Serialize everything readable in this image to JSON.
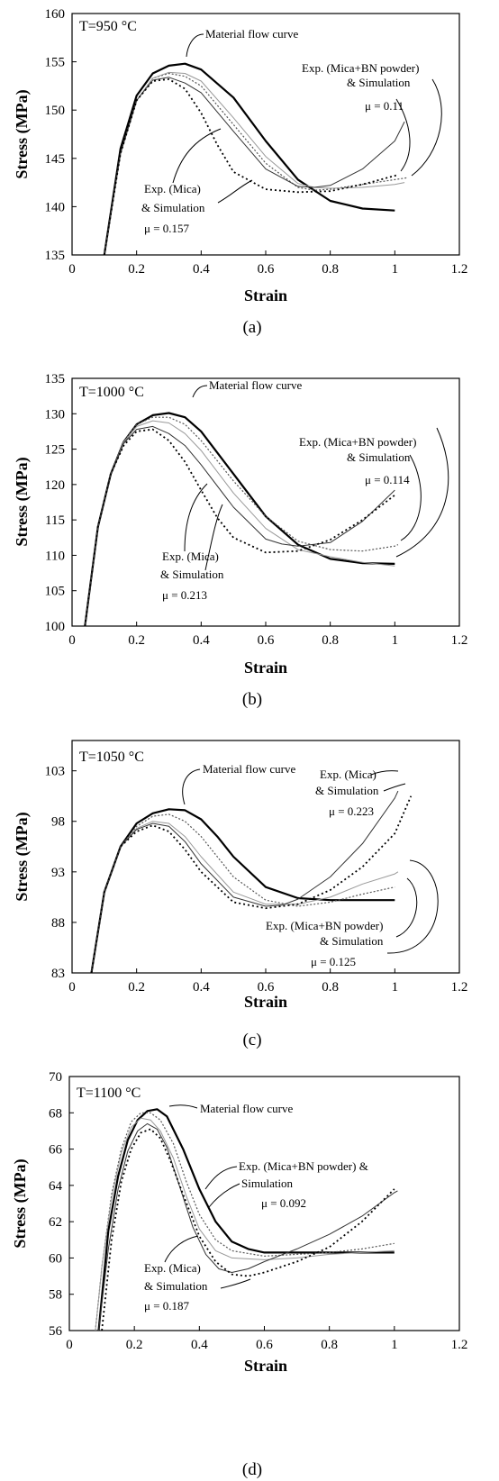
{
  "chart_data": [
    {
      "type": "line",
      "temperature_label": "T=950 °C",
      "panel_label": "(a)",
      "xlabel": "Strain",
      "ylabel": "Stress (MPa)",
      "xlim": [
        0,
        1.2
      ],
      "ylim": [
        135,
        160
      ],
      "xticks": [
        0,
        0.2,
        0.4,
        0.6,
        0.8,
        1,
        1.2
      ],
      "xtick_labels": [
        "0",
        "0.2",
        "0.4",
        "0.6",
        "0.8",
        "1",
        "1.2"
      ],
      "yticks": [
        135,
        140,
        145,
        150,
        155,
        160
      ],
      "ytick_labels": [
        "135",
        "140",
        "145",
        "150",
        "155",
        "160"
      ],
      "annotations": [
        {
          "lines": [
            "Material flow curve"
          ]
        },
        {
          "lines": [
            "Exp. (Mica+BN powder)",
            "& Simulation",
            "μ = 0.11"
          ]
        },
        {
          "lines": [
            "Exp. (Mica)",
            "& Simulation",
            "μ = 0.157"
          ]
        }
      ],
      "series": [
        {
          "x": [
            0.1,
            0.15,
            0.2,
            0.25,
            0.3,
            0.35,
            0.4,
            0.5,
            0.6,
            0.7,
            0.8,
            0.9,
            1.0
          ],
          "y": [
            135,
            146,
            151.5,
            153.8,
            154.6,
            154.8,
            154.2,
            151.3,
            146.8,
            142.8,
            140.6,
            139.8,
            139.6
          ]
        },
        {
          "x": [
            0.1,
            0.15,
            0.2,
            0.25,
            0.3,
            0.35,
            0.4,
            0.5,
            0.6,
            0.7,
            0.75,
            0.8,
            0.9,
            1.0,
            1.04
          ],
          "y": [
            135,
            145.5,
            151,
            153.3,
            153.8,
            153.5,
            152.5,
            148.5,
            144.5,
            142.0,
            141.7,
            141.8,
            142.3,
            142.8,
            143.0
          ]
        },
        {
          "x": [
            0.1,
            0.15,
            0.2,
            0.25,
            0.3,
            0.35,
            0.4,
            0.5,
            0.6,
            0.7,
            0.75,
            0.8,
            0.9,
            1.0,
            1.03
          ],
          "y": [
            135,
            145.5,
            151,
            153.3,
            153.9,
            153.8,
            153.0,
            149.2,
            145.2,
            142.4,
            142.0,
            141.9,
            142.0,
            142.3,
            142.5
          ]
        },
        {
          "x": [
            0.1,
            0.15,
            0.2,
            0.25,
            0.3,
            0.35,
            0.4,
            0.5,
            0.6,
            0.7,
            0.75,
            0.8,
            0.9,
            1.0,
            1.03
          ],
          "y": [
            135,
            145.5,
            151,
            153.1,
            153.4,
            152.8,
            151.8,
            147.8,
            143.9,
            142.1,
            142.0,
            142.2,
            143.9,
            146.8,
            148.8
          ]
        },
        {
          "x": [
            0.1,
            0.15,
            0.2,
            0.25,
            0.3,
            0.35,
            0.4,
            0.45,
            0.5,
            0.6,
            0.7,
            0.8,
            0.9,
            1.0,
            1.01
          ],
          "y": [
            135,
            145.5,
            151,
            153.0,
            153.2,
            152.2,
            149.7,
            146.4,
            143.6,
            141.8,
            141.5,
            141.6,
            142.3,
            143.2,
            143.3
          ]
        }
      ]
    },
    {
      "type": "line",
      "temperature_label": "T=1000 °C",
      "panel_label": "(b)",
      "xlabel": "Strain",
      "ylabel": "Stress (MPa)",
      "xlim": [
        0,
        1.2
      ],
      "ylim": [
        100,
        135
      ],
      "xticks": [
        0,
        0.2,
        0.4,
        0.6,
        0.8,
        1,
        1.2
      ],
      "xtick_labels": [
        "0",
        "0.2",
        "0.4",
        "0.6",
        "0.8",
        "1",
        "1.2"
      ],
      "yticks": [
        100,
        105,
        110,
        115,
        120,
        125,
        130,
        135
      ],
      "ytick_labels": [
        "100",
        "105",
        "110",
        "115",
        "120",
        "125",
        "130",
        "135"
      ],
      "annotations": [
        {
          "lines": [
            "Material flow curve"
          ]
        },
        {
          "lines": [
            "Exp. (Mica+BN powder)",
            "& Simulation",
            "μ = 0.114"
          ]
        },
        {
          "lines": [
            "Exp. (Mica)",
            "& Simulation",
            "μ = 0.213"
          ]
        }
      ],
      "series": [
        {
          "x": [
            0.04,
            0.08,
            0.12,
            0.16,
            0.2,
            0.25,
            0.3,
            0.35,
            0.4,
            0.5,
            0.6,
            0.7,
            0.8,
            0.9,
            1.0
          ],
          "y": [
            100,
            114,
            121.5,
            126,
            128.5,
            129.8,
            130.1,
            129.5,
            127.5,
            121.5,
            115.5,
            111.5,
            109.5,
            108.9,
            108.8
          ]
        },
        {
          "x": [
            0.04,
            0.08,
            0.12,
            0.16,
            0.2,
            0.25,
            0.3,
            0.35,
            0.4,
            0.5,
            0.6,
            0.7,
            0.8,
            0.9,
            1.0,
            1.01
          ],
          "y": [
            100,
            114,
            121.5,
            126,
            128.5,
            129.5,
            129.5,
            128.5,
            126.2,
            120.5,
            115.5,
            112.0,
            110.8,
            110.6,
            111.3,
            111.5
          ]
        },
        {
          "x": [
            0.04,
            0.08,
            0.12,
            0.16,
            0.2,
            0.25,
            0.3,
            0.35,
            0.4,
            0.5,
            0.6,
            0.7,
            0.8,
            0.9,
            1.0
          ],
          "y": [
            100,
            114,
            121.5,
            126,
            128.2,
            129.0,
            128.7,
            127.2,
            124.8,
            118.8,
            113.8,
            110.8,
            109.8,
            109.0,
            108.5
          ]
        },
        {
          "x": [
            0.04,
            0.08,
            0.12,
            0.16,
            0.2,
            0.25,
            0.3,
            0.35,
            0.4,
            0.5,
            0.6,
            0.65,
            0.7,
            0.8,
            0.9,
            1.0
          ],
          "y": [
            100,
            114,
            121.5,
            125.8,
            127.8,
            128.2,
            127.2,
            125.5,
            122.8,
            116.8,
            112.3,
            111.6,
            111.3,
            111.8,
            114.8,
            119.2
          ]
        },
        {
          "x": [
            0.04,
            0.08,
            0.12,
            0.16,
            0.2,
            0.25,
            0.3,
            0.35,
            0.4,
            0.45,
            0.5,
            0.6,
            0.7,
            0.8,
            0.9,
            1.0
          ],
          "y": [
            100,
            114,
            121.5,
            125.5,
            127.5,
            127.8,
            126.2,
            123.2,
            119.2,
            115.3,
            112.5,
            110.4,
            110.6,
            112.2,
            115.0,
            118.5
          ]
        }
      ]
    },
    {
      "type": "line",
      "temperature_label": "T=1050 °C",
      "panel_label": "(c)",
      "xlabel": "Strain",
      "ylabel": "Stress (MPa)",
      "xlim": [
        0,
        1.2
      ],
      "ylim": [
        83,
        106
      ],
      "xticks": [
        0,
        0.2,
        0.4,
        0.6,
        0.8,
        1,
        1.2
      ],
      "xtick_labels": [
        "0",
        "0.2",
        "0.4",
        "0.6",
        "0.8",
        "1",
        "1.2"
      ],
      "yticks": [
        83,
        88,
        93,
        98,
        103
      ],
      "ytick_labels": [
        "83",
        "88",
        "93",
        "98",
        "103"
      ],
      "annotations": [
        {
          "lines": [
            "Material flow curve"
          ]
        },
        {
          "lines": [
            "Exp. (Mica)",
            "& Simulation",
            "μ = 0.223"
          ]
        },
        {
          "lines": [
            "Exp. (Mica+BN powder)",
            "& Simulation",
            "μ = 0.125"
          ]
        }
      ],
      "series": [
        {
          "x": [
            0.06,
            0.1,
            0.15,
            0.2,
            0.25,
            0.3,
            0.35,
            0.4,
            0.45,
            0.5,
            0.6,
            0.7,
            0.8,
            0.9,
            1.0
          ],
          "y": [
            83,
            91,
            95.5,
            97.8,
            98.8,
            99.2,
            99.1,
            98.2,
            96.5,
            94.5,
            91.5,
            90.4,
            90.2,
            90.2,
            90.2
          ]
        },
        {
          "x": [
            0.06,
            0.1,
            0.15,
            0.2,
            0.25,
            0.3,
            0.35,
            0.4,
            0.5,
            0.6,
            0.7,
            0.8,
            0.9,
            1.0
          ],
          "y": [
            83,
            91,
            95.5,
            97.5,
            98.5,
            98.7,
            98.0,
            96.5,
            92.5,
            90.2,
            89.6,
            90.0,
            90.8,
            91.5
          ]
        },
        {
          "x": [
            0.06,
            0.1,
            0.15,
            0.2,
            0.25,
            0.3,
            0.35,
            0.4,
            0.5,
            0.6,
            0.7,
            0.8,
            0.9,
            1.0,
            1.01
          ],
          "y": [
            83,
            91,
            95.5,
            97.3,
            98.0,
            97.8,
            96.5,
            94.5,
            91.0,
            89.8,
            89.8,
            90.5,
            91.8,
            92.8,
            93.0
          ]
        },
        {
          "x": [
            0.06,
            0.1,
            0.15,
            0.2,
            0.25,
            0.3,
            0.35,
            0.4,
            0.5,
            0.6,
            0.65,
            0.7,
            0.8,
            0.9,
            1.0,
            1.01
          ],
          "y": [
            83,
            91,
            95.5,
            97.2,
            97.8,
            97.5,
            96.0,
            93.8,
            90.5,
            89.6,
            89.7,
            90.3,
            92.5,
            95.8,
            100.3,
            101.0
          ]
        },
        {
          "x": [
            0.06,
            0.1,
            0.15,
            0.2,
            0.25,
            0.3,
            0.35,
            0.4,
            0.5,
            0.6,
            0.7,
            0.8,
            0.9,
            1.0,
            1.05
          ],
          "y": [
            83,
            91,
            95.5,
            97.0,
            97.6,
            97.0,
            95.2,
            93.0,
            90.0,
            89.4,
            89.8,
            91.2,
            93.5,
            96.8,
            100.5
          ]
        }
      ]
    },
    {
      "type": "line",
      "temperature_label": "T=1100 °C",
      "panel_label": "(d)",
      "xlabel": "Strain",
      "ylabel": "Stress (MPa)",
      "xlim": [
        0,
        1.2
      ],
      "ylim": [
        56,
        70
      ],
      "xticks": [
        0,
        0.2,
        0.4,
        0.6,
        0.8,
        1,
        1.2
      ],
      "xtick_labels": [
        "0",
        "0.2",
        "0.4",
        "0.6",
        "0.8",
        "1",
        "1.2"
      ],
      "yticks": [
        56,
        58,
        60,
        62,
        64,
        66,
        68,
        70
      ],
      "ytick_labels": [
        "56",
        "58",
        "60",
        "62",
        "64",
        "66",
        "68",
        "70"
      ],
      "annotations": [
        {
          "lines": [
            "Material flow curve"
          ]
        },
        {
          "lines": [
            "Exp. (Mica+BN powder) &",
            "Simulation",
            "μ = 0.092"
          ]
        },
        {
          "lines": [
            "Exp. (Mica)",
            "& Simulation",
            "μ = 0.187"
          ]
        }
      ],
      "series": [
        {
          "x": [
            0.09,
            0.12,
            0.15,
            0.18,
            0.21,
            0.24,
            0.27,
            0.3,
            0.35,
            0.4,
            0.45,
            0.5,
            0.55,
            0.6,
            0.7,
            0.8,
            0.9,
            1.0
          ],
          "y": [
            56,
            61.5,
            64.5,
            66.5,
            67.6,
            68.1,
            68.2,
            67.8,
            66.0,
            63.8,
            62.0,
            60.9,
            60.5,
            60.3,
            60.3,
            60.3,
            60.3,
            60.3
          ]
        },
        {
          "x": [
            0.08,
            0.1,
            0.13,
            0.16,
            0.19,
            0.22,
            0.25,
            0.28,
            0.32,
            0.36,
            0.4,
            0.45,
            0.5,
            0.6,
            0.7,
            0.8,
            0.9,
            1.0
          ],
          "y": [
            56,
            59.5,
            63.5,
            66.0,
            67.5,
            68.0,
            68.0,
            67.6,
            66.3,
            64.2,
            62.4,
            61.0,
            60.4,
            60.1,
            60.2,
            60.3,
            60.5,
            60.8
          ]
        },
        {
          "x": [
            0.08,
            0.1,
            0.13,
            0.16,
            0.19,
            0.22,
            0.25,
            0.28,
            0.32,
            0.36,
            0.4,
            0.45,
            0.5,
            0.6,
            0.7,
            0.8,
            0.9,
            1.0
          ],
          "y": [
            56,
            59.5,
            63.3,
            65.8,
            67.2,
            67.7,
            67.6,
            67.0,
            65.5,
            63.4,
            61.6,
            60.4,
            60.0,
            59.9,
            60.0,
            60.2,
            60.3,
            60.4
          ]
        },
        {
          "x": [
            0.09,
            0.12,
            0.15,
            0.18,
            0.21,
            0.24,
            0.27,
            0.3,
            0.34,
            0.38,
            0.42,
            0.46,
            0.5,
            0.55,
            0.6,
            0.7,
            0.8,
            0.9,
            1.0,
            1.01
          ],
          "y": [
            56,
            60.5,
            63.8,
            65.9,
            67.0,
            67.4,
            67.1,
            66.1,
            63.9,
            61.7,
            60.2,
            59.4,
            59.2,
            59.4,
            59.8,
            60.5,
            61.3,
            62.3,
            63.6,
            63.7
          ]
        },
        {
          "x": [
            0.1,
            0.13,
            0.16,
            0.19,
            0.22,
            0.25,
            0.28,
            0.31,
            0.35,
            0.4,
            0.45,
            0.5,
            0.55,
            0.6,
            0.7,
            0.8,
            0.9,
            1.0
          ],
          "y": [
            56,
            61.0,
            64.2,
            66.0,
            66.9,
            67.1,
            66.6,
            65.4,
            63.5,
            61.2,
            59.8,
            59.1,
            59.0,
            59.2,
            59.8,
            60.6,
            62.0,
            63.8
          ]
        }
      ]
    }
  ]
}
